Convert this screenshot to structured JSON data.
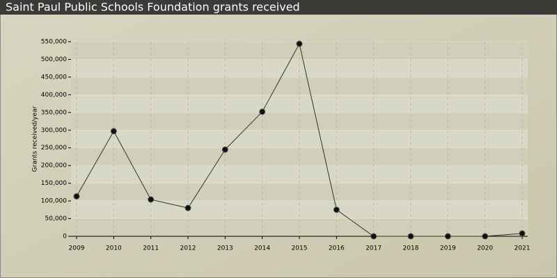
{
  "chart_data": {
    "type": "line",
    "title": "Saint Paul Public Schools Foundation grants received",
    "y_label": "Grants received/year",
    "categories": [
      "2009",
      "2010",
      "2011",
      "2012",
      "2013",
      "2014",
      "2015",
      "2016",
      "2017",
      "2018",
      "2019",
      "2020",
      "2021"
    ],
    "series": [
      {
        "name": "Grants received/year",
        "color": "#333322",
        "values": [
          113000,
          297000,
          104000,
          80000,
          245000,
          352000,
          544000,
          75000,
          0,
          0,
          0,
          0,
          8000
        ]
      }
    ],
    "ylim": [
      0,
      550000
    ],
    "yticks": [
      0,
      {
        "value": 50000,
        "label": "50,000"
      },
      {
        "value": 100000,
        "label": "100,000"
      },
      {
        "value": 150000,
        "label": "150,000"
      },
      {
        "value": 200000,
        "label": "200,000"
      },
      {
        "value": 250000,
        "label": "250,000"
      },
      {
        "value": 300000,
        "label": "300,000"
      },
      {
        "value": 350000,
        "label": "350,000"
      },
      {
        "value": 400000,
        "label": "400,000"
      },
      {
        "value": 450000,
        "label": "450,000"
      },
      {
        "value": 500000,
        "label": "500,000"
      },
      {
        "value": 550000,
        "label": "550,000"
      }
    ],
    "grid": true
  }
}
